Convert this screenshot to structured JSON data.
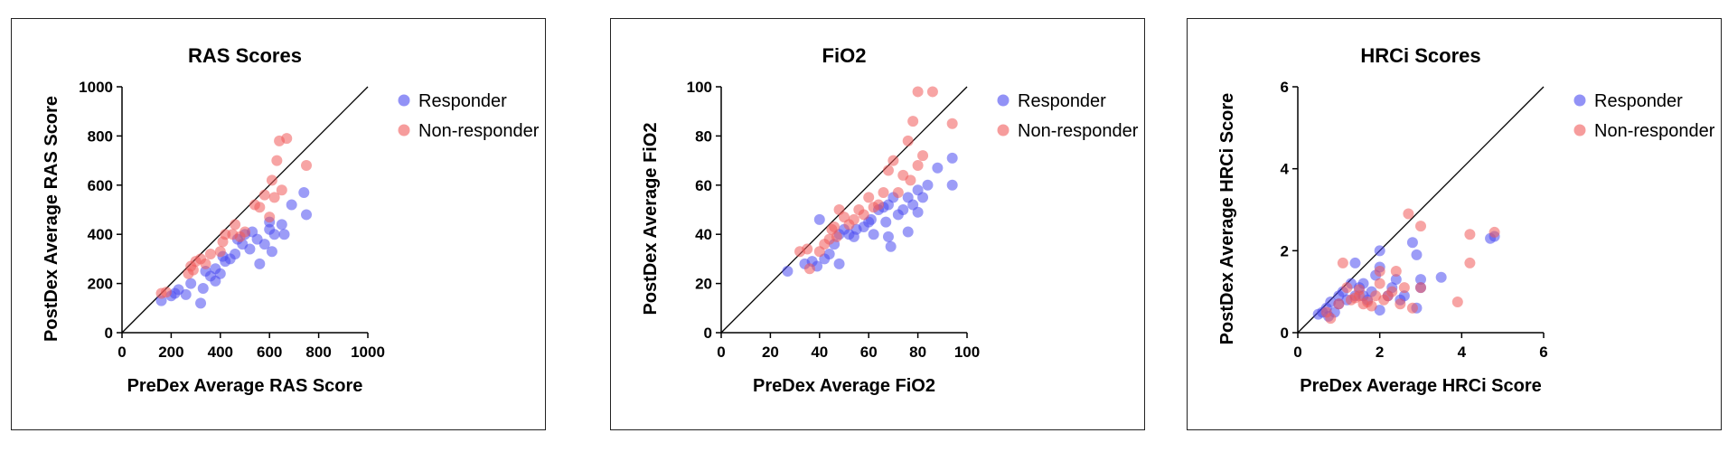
{
  "charts": [
    {
      "id": "ras",
      "type": "scatter",
      "title": "RAS Scores",
      "xlabel": "PreDex Average RAS Score",
      "ylabel": "PostDex Average RAS Score",
      "xlim": [
        0,
        1000
      ],
      "ylim": [
        0,
        1000
      ],
      "xticks": [
        "0",
        "200",
        "400",
        "600",
        "800",
        "1000"
      ],
      "yticks": [
        "0",
        "200",
        "400",
        "600",
        "800",
        "1000"
      ],
      "identity_line": true,
      "legend": {
        "position": "top-right",
        "entries": [
          "Responder",
          "Non-responder"
        ]
      },
      "series": [
        {
          "name": "Responder",
          "color": "#4a4af0",
          "points": [
            [
              160,
              130
            ],
            [
              200,
              150
            ],
            [
              215,
              160
            ],
            [
              230,
              175
            ],
            [
              260,
              155
            ],
            [
              280,
              200
            ],
            [
              320,
              120
            ],
            [
              330,
              180
            ],
            [
              340,
              250
            ],
            [
              360,
              230
            ],
            [
              380,
              210
            ],
            [
              380,
              260
            ],
            [
              400,
              240
            ],
            [
              410,
              310
            ],
            [
              420,
              290
            ],
            [
              440,
              300
            ],
            [
              460,
              320
            ],
            [
              470,
              380
            ],
            [
              490,
              360
            ],
            [
              500,
              400
            ],
            [
              520,
              340
            ],
            [
              530,
              410
            ],
            [
              550,
              380
            ],
            [
              560,
              280
            ],
            [
              580,
              360
            ],
            [
              600,
              420
            ],
            [
              600,
              450
            ],
            [
              610,
              330
            ],
            [
              620,
              400
            ],
            [
              650,
              440
            ],
            [
              660,
              400
            ],
            [
              690,
              520
            ],
            [
              740,
              570
            ],
            [
              750,
              480
            ]
          ]
        },
        {
          "name": "Non-responder",
          "color": "#f05a5a",
          "points": [
            [
              160,
              160
            ],
            [
              180,
              165
            ],
            [
              270,
              240
            ],
            [
              280,
              270
            ],
            [
              290,
              255
            ],
            [
              300,
              290
            ],
            [
              320,
              300
            ],
            [
              340,
              280
            ],
            [
              360,
              320
            ],
            [
              400,
              330
            ],
            [
              410,
              370
            ],
            [
              420,
              400
            ],
            [
              450,
              400
            ],
            [
              460,
              440
            ],
            [
              480,
              390
            ],
            [
              500,
              410
            ],
            [
              540,
              520
            ],
            [
              560,
              510
            ],
            [
              580,
              560
            ],
            [
              600,
              470
            ],
            [
              610,
              620
            ],
            [
              620,
              550
            ],
            [
              630,
              700
            ],
            [
              640,
              780
            ],
            [
              650,
              580
            ],
            [
              670,
              790
            ],
            [
              750,
              680
            ]
          ]
        }
      ]
    },
    {
      "id": "fio2",
      "type": "scatter",
      "title": "FiO2",
      "xlabel": "PreDex Average FiO2",
      "ylabel": "PostDex Average FiO2",
      "xlim": [
        0,
        100
      ],
      "ylim": [
        0,
        100
      ],
      "xticks": [
        "0",
        "20",
        "40",
        "60",
        "80",
        "100"
      ],
      "yticks": [
        "0",
        "20",
        "40",
        "60",
        "80",
        "100"
      ],
      "identity_line": true,
      "legend": {
        "position": "top-right",
        "entries": [
          "Responder",
          "Non-responder"
        ]
      },
      "series": [
        {
          "name": "Responder",
          "color": "#4a4af0",
          "points": [
            [
              27,
              25
            ],
            [
              34,
              28
            ],
            [
              37,
              29
            ],
            [
              39,
              27
            ],
            [
              40,
              46
            ],
            [
              42,
              30
            ],
            [
              44,
              32
            ],
            [
              46,
              36
            ],
            [
              48,
              28
            ],
            [
              48,
              40
            ],
            [
              50,
              42
            ],
            [
              52,
              40
            ],
            [
              54,
              39
            ],
            [
              55,
              42
            ],
            [
              58,
              43
            ],
            [
              60,
              45
            ],
            [
              61,
              46
            ],
            [
              62,
              40
            ],
            [
              64,
              50
            ],
            [
              66,
              51
            ],
            [
              67,
              45
            ],
            [
              68,
              39
            ],
            [
              68,
              52
            ],
            [
              69,
              35
            ],
            [
              70,
              55
            ],
            [
              72,
              48
            ],
            [
              74,
              50
            ],
            [
              76,
              55
            ],
            [
              76,
              41
            ],
            [
              78,
              52
            ],
            [
              80,
              58
            ],
            [
              80,
              49
            ],
            [
              82,
              55
            ],
            [
              84,
              60
            ],
            [
              88,
              67
            ],
            [
              94,
              71
            ],
            [
              94,
              60
            ]
          ]
        },
        {
          "name": "Non-responder",
          "color": "#f05a5a",
          "points": [
            [
              32,
              33
            ],
            [
              35,
              34
            ],
            [
              36,
              26
            ],
            [
              40,
              33
            ],
            [
              42,
              36
            ],
            [
              44,
              38
            ],
            [
              45,
              42
            ],
            [
              46,
              43
            ],
            [
              47,
              39
            ],
            [
              48,
              50
            ],
            [
              50,
              47
            ],
            [
              52,
              44
            ],
            [
              54,
              46
            ],
            [
              56,
              50
            ],
            [
              58,
              48
            ],
            [
              60,
              55
            ],
            [
              62,
              51
            ],
            [
              64,
              52
            ],
            [
              66,
              57
            ],
            [
              68,
              66
            ],
            [
              70,
              70
            ],
            [
              72,
              57
            ],
            [
              74,
              64
            ],
            [
              76,
              78
            ],
            [
              77,
              62
            ],
            [
              78,
              86
            ],
            [
              80,
              68
            ],
            [
              80,
              98
            ],
            [
              82,
              72
            ],
            [
              86,
              98
            ],
            [
              94,
              85
            ]
          ]
        }
      ]
    },
    {
      "id": "hrci",
      "type": "scatter",
      "title": "HRCi Scores",
      "xlabel": "PreDex Average HRCi Score",
      "ylabel": "PostDex Average HRCi Score",
      "xlim": [
        0,
        6
      ],
      "ylim": [
        0,
        6
      ],
      "xticks": [
        "0",
        "2",
        "4",
        "6"
      ],
      "yticks": [
        "0",
        "2",
        "4",
        "6"
      ],
      "identity_line": true,
      "legend": {
        "position": "top-right",
        "entries": [
          "Responder",
          "Non-responder"
        ]
      },
      "series": [
        {
          "name": "Responder",
          "color": "#4a4af0",
          "points": [
            [
              0.5,
              0.45
            ],
            [
              0.6,
              0.5
            ],
            [
              0.7,
              0.6
            ],
            [
              0.75,
              0.4
            ],
            [
              0.8,
              0.75
            ],
            [
              0.9,
              0.5
            ],
            [
              1.0,
              0.7
            ],
            [
              1.0,
              0.9
            ],
            [
              1.1,
              1.0
            ],
            [
              1.2,
              0.8
            ],
            [
              1.3,
              1.2
            ],
            [
              1.4,
              0.9
            ],
            [
              1.4,
              1.7
            ],
            [
              1.5,
              1.1
            ],
            [
              1.6,
              0.9
            ],
            [
              1.6,
              1.2
            ],
            [
              1.7,
              0.8
            ],
            [
              1.8,
              1.0
            ],
            [
              1.9,
              1.4
            ],
            [
              2.0,
              1.6
            ],
            [
              2.0,
              2.0
            ],
            [
              2.0,
              0.55
            ],
            [
              2.2,
              0.9
            ],
            [
              2.3,
              1.1
            ],
            [
              2.4,
              1.3
            ],
            [
              2.5,
              0.8
            ],
            [
              2.6,
              0.9
            ],
            [
              2.8,
              2.2
            ],
            [
              2.9,
              1.9
            ],
            [
              2.9,
              0.6
            ],
            [
              3.0,
              1.1
            ],
            [
              3.0,
              1.3
            ],
            [
              3.5,
              1.35
            ],
            [
              4.7,
              2.3
            ],
            [
              4.8,
              2.35
            ]
          ]
        },
        {
          "name": "Non-responder",
          "color": "#f05a5a",
          "points": [
            [
              0.7,
              0.5
            ],
            [
              0.8,
              0.35
            ],
            [
              1.0,
              0.7
            ],
            [
              1.1,
              1.7
            ],
            [
              1.2,
              1.1
            ],
            [
              1.3,
              0.8
            ],
            [
              1.4,
              0.85
            ],
            [
              1.5,
              0.9
            ],
            [
              1.5,
              1.05
            ],
            [
              1.6,
              0.7
            ],
            [
              1.7,
              0.75
            ],
            [
              1.8,
              0.65
            ],
            [
              1.9,
              0.9
            ],
            [
              2.0,
              1.2
            ],
            [
              2.0,
              1.5
            ],
            [
              2.1,
              0.8
            ],
            [
              2.2,
              0.9
            ],
            [
              2.3,
              1.0
            ],
            [
              2.4,
              1.5
            ],
            [
              2.5,
              0.7
            ],
            [
              2.6,
              1.1
            ],
            [
              2.7,
              2.9
            ],
            [
              2.8,
              0.6
            ],
            [
              3.0,
              2.6
            ],
            [
              3.0,
              1.1
            ],
            [
              3.9,
              0.75
            ],
            [
              4.2,
              1.7
            ],
            [
              4.2,
              2.4
            ],
            [
              4.8,
              2.45
            ]
          ]
        }
      ]
    }
  ]
}
